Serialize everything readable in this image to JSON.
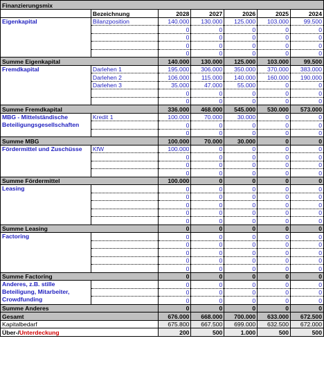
{
  "title": "Finanzierungsmix",
  "header": {
    "bezeichnung": "Bezeichnung",
    "years": [
      "2028",
      "2027",
      "2026",
      "2025",
      "2024"
    ]
  },
  "sections": [
    {
      "key": "eigenkapital",
      "label": "Eigenkapital",
      "rows": [
        {
          "name": "Bilanzposition",
          "values": [
            "140.000",
            "130.000",
            "125.000",
            "103.000",
            "99.500"
          ]
        },
        {
          "name": "",
          "values": [
            "0",
            "0",
            "0",
            "0",
            "0"
          ]
        },
        {
          "name": "",
          "values": [
            "0",
            "0",
            "0",
            "0",
            "0"
          ]
        },
        {
          "name": "",
          "values": [
            "0",
            "0",
            "0",
            "0",
            "0"
          ]
        },
        {
          "name": "",
          "values": [
            "0",
            "0",
            "0",
            "0",
            "0"
          ]
        }
      ],
      "sum_label": "Summe Eigenkapital",
      "sum": [
        "140.000",
        "130.000",
        "125.000",
        "103.000",
        "99.500"
      ]
    },
    {
      "key": "fremdkapital",
      "label": "Fremdkapital",
      "rows": [
        {
          "name": "Darlehen 1",
          "values": [
            "195.000",
            "306.000",
            "350.000",
            "370.000",
            "383.000"
          ]
        },
        {
          "name": "Darlehen 2",
          "values": [
            "106.000",
            "115.000",
            "140.000",
            "160.000",
            "190.000"
          ]
        },
        {
          "name": "Darlehen 3",
          "values": [
            "35.000",
            "47.000",
            "55.000",
            "0",
            "0"
          ]
        },
        {
          "name": "",
          "values": [
            "0",
            "0",
            "0",
            "0",
            "0"
          ]
        },
        {
          "name": "",
          "values": [
            "0",
            "0",
            "0",
            "0",
            "0"
          ]
        }
      ],
      "sum_label": "Summe Fremdkapital",
      "sum": [
        "336.000",
        "468.000",
        "545.000",
        "530.000",
        "573.000"
      ]
    },
    {
      "key": "mbg",
      "label": "MBG - Mittelständische Beteiligungsgesellschaften",
      "rows": [
        {
          "name": "Kredit 1",
          "values": [
            "100.000",
            "70.000",
            "30.000",
            "0",
            "0"
          ]
        },
        {
          "name": "",
          "values": [
            "0",
            "0",
            "0",
            "0",
            "0"
          ]
        },
        {
          "name": "",
          "values": [
            "0",
            "0",
            "0",
            "0",
            "0"
          ]
        }
      ],
      "sum_label": "Summe MBG",
      "sum": [
        "100.000",
        "70.000",
        "30.000",
        "0",
        "0"
      ]
    },
    {
      "key": "foerdermittel",
      "label": "Fördermittel und Zuschüsse",
      "rows": [
        {
          "name": "KfW",
          "values": [
            "100.000",
            "0",
            "0",
            "0",
            "0"
          ]
        },
        {
          "name": "",
          "values": [
            "0",
            "0",
            "0",
            "0",
            "0"
          ]
        },
        {
          "name": "",
          "values": [
            "0",
            "0",
            "0",
            "0",
            "0"
          ]
        },
        {
          "name": "",
          "values": [
            "0",
            "0",
            "0",
            "0",
            "0"
          ]
        }
      ],
      "sum_label": "Summe Fördermittel",
      "sum": [
        "100.000",
        "0",
        "0",
        "0",
        "0"
      ]
    },
    {
      "key": "leasing",
      "label": "Leasing",
      "rows": [
        {
          "name": "",
          "values": [
            "0",
            "0",
            "0",
            "0",
            "0"
          ]
        },
        {
          "name": "",
          "values": [
            "0",
            "0",
            "0",
            "0",
            "0"
          ]
        },
        {
          "name": "",
          "values": [
            "0",
            "0",
            "0",
            "0",
            "0"
          ]
        },
        {
          "name": "",
          "values": [
            "0",
            "0",
            "0",
            "0",
            "0"
          ]
        },
        {
          "name": "",
          "values": [
            "0",
            "0",
            "0",
            "0",
            "0"
          ]
        }
      ],
      "sum_label": "Summe Leasing",
      "sum": [
        "0",
        "0",
        "0",
        "0",
        "0"
      ]
    },
    {
      "key": "factoring",
      "label": "Factoring",
      "rows": [
        {
          "name": "",
          "values": [
            "0",
            "0",
            "0",
            "0",
            "0"
          ]
        },
        {
          "name": "",
          "values": [
            "0",
            "0",
            "0",
            "0",
            "0"
          ]
        },
        {
          "name": "",
          "values": [
            "0",
            "0",
            "0",
            "0",
            "0"
          ]
        },
        {
          "name": "",
          "values": [
            "0",
            "0",
            "0",
            "0",
            "0"
          ]
        },
        {
          "name": "",
          "values": [
            "0",
            "0",
            "0",
            "0",
            "0"
          ]
        }
      ],
      "sum_label": "Summe Factoring",
      "sum": [
        "0",
        "0",
        "0",
        "0",
        "0"
      ]
    },
    {
      "key": "anderes",
      "label": "Anderes, z.B. stille Beteiligung, Mitarbeiter, Crowdfunding",
      "rows": [
        {
          "name": "",
          "values": [
            "0",
            "0",
            "0",
            "0",
            "0"
          ]
        },
        {
          "name": "",
          "values": [
            "0",
            "0",
            "0",
            "0",
            "0"
          ]
        },
        {
          "name": "",
          "values": [
            "0",
            "0",
            "0",
            "0",
            "0"
          ]
        }
      ],
      "sum_label": "Summe Anderes",
      "sum": [
        "0",
        "0",
        "0",
        "0",
        "0"
      ]
    }
  ],
  "gesamt": {
    "label": "Gesamt",
    "values": [
      "676.000",
      "668.000",
      "700.000",
      "633.000",
      "672.500"
    ]
  },
  "kapitalbedarf": {
    "label": "Kapitalbedarf",
    "values": [
      "675.800",
      "667.500",
      "699.000",
      "632.500",
      "672.000"
    ]
  },
  "ueber": {
    "label_a": "Über-/",
    "label_b": "Unterdeckung",
    "values": [
      "200",
      "500",
      "1.000",
      "500",
      "500"
    ]
  }
}
